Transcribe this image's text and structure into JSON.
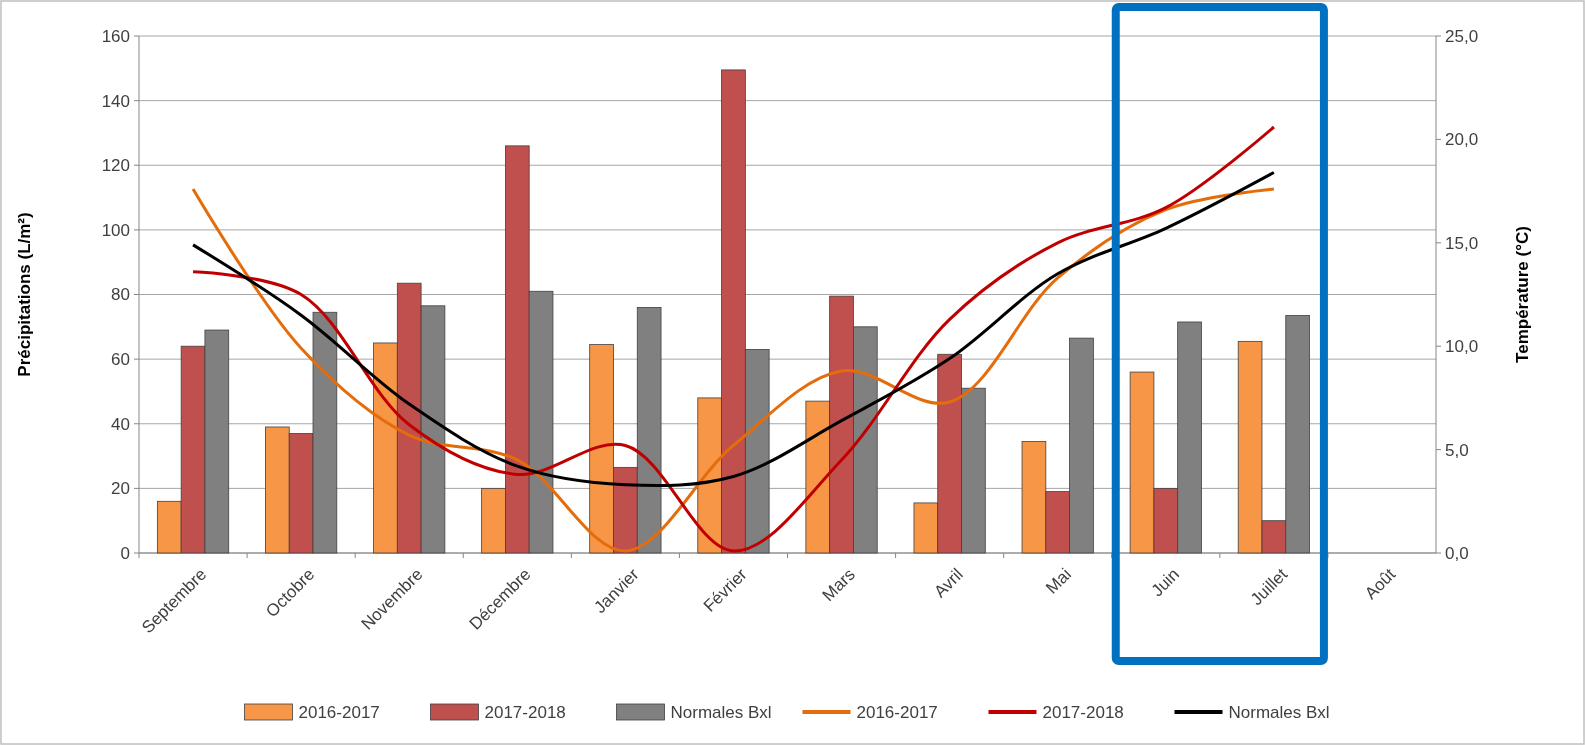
{
  "chart_data": {
    "type": "bar",
    "ylabel": "Précipitations (L/m²)",
    "y2label": "Température (°C)",
    "categories": [
      "Septembre",
      "Octobre",
      "Novembre",
      "Décembre",
      "Janvier",
      "Février",
      "Mars",
      "Avril",
      "Mai",
      "Juin",
      "Juillet",
      "Août"
    ],
    "series": [
      {
        "name": "2016-2017",
        "color": "#f79646",
        "values": [
          16,
          39,
          65,
          20,
          64.5,
          48,
          47,
          15.5,
          34.5,
          56,
          65.5,
          null
        ]
      },
      {
        "name": "2017-2018",
        "color": "#c0504d",
        "values": [
          64,
          37,
          83.5,
          126,
          26.5,
          149.5,
          79.5,
          61.5,
          19,
          20,
          10,
          null
        ]
      },
      {
        "name": "Normales Bxl",
        "color": "#808080",
        "values": [
          69,
          74.5,
          76.5,
          81,
          76,
          63,
          70,
          51,
          66.5,
          71.5,
          73.5,
          null
        ]
      },
      {
        "name": "2016-2017",
        "type": "line",
        "axis": "y2",
        "color": "#e46c0a",
        "values": [
          17.6,
          9.9,
          5.7,
          4.5,
          0.1,
          5.2,
          8.8,
          7.3,
          13.3,
          16.6,
          17.6,
          null
        ]
      },
      {
        "name": "2017-2018",
        "type": "line",
        "axis": "y2",
        "color": "#c00000",
        "values": [
          13.6,
          12.5,
          6.2,
          3.8,
          5.2,
          0.1,
          4.5,
          11.3,
          15.0,
          16.7,
          20.6,
          null
        ]
      },
      {
        "name": "Normales Bxl",
        "type": "line",
        "axis": "y2",
        "color": "#000000",
        "values": [
          14.9,
          11.5,
          7.2,
          4.2,
          3.3,
          3.7,
          6.4,
          9.4,
          13.5,
          15.7,
          18.4,
          null
        ]
      }
    ],
    "ylim": [
      0,
      160
    ],
    "yticks": [
      0,
      20,
      40,
      60,
      80,
      100,
      120,
      140,
      160
    ],
    "y2lim": [
      0,
      25
    ],
    "y2ticks": [
      {
        "value": 0,
        "label": "0,0"
      },
      {
        "value": 5,
        "label": "5,0"
      },
      {
        "value": 10,
        "label": "10,0"
      },
      {
        "value": 15,
        "label": "15,0"
      },
      {
        "value": 20,
        "label": "20,0"
      },
      {
        "value": 25,
        "label": "25,0"
      }
    ],
    "grid": "y",
    "legend": "bottom",
    "marker": "none"
  }
}
